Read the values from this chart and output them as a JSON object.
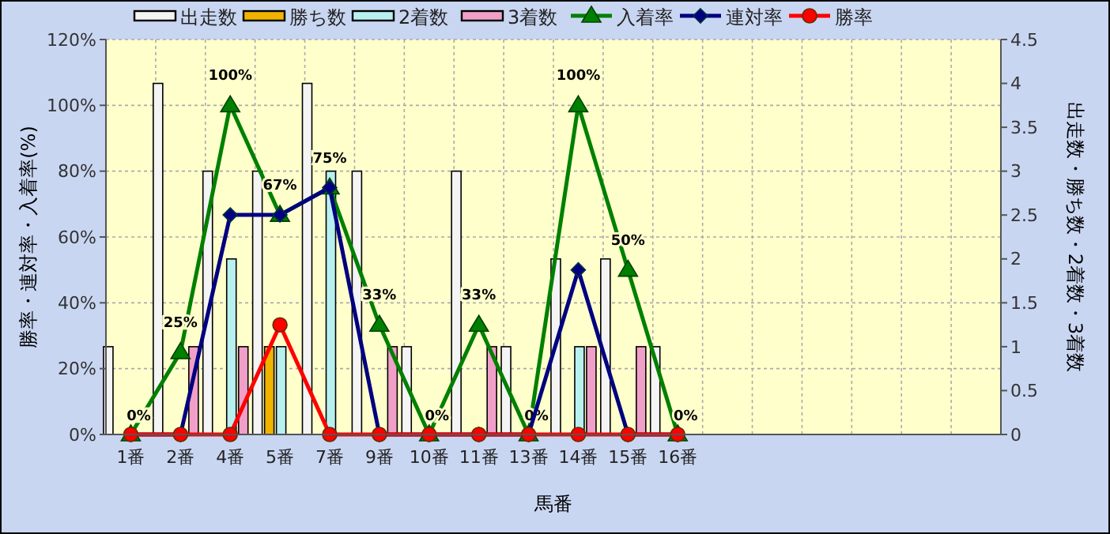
{
  "chart_data": {
    "type": "bar",
    "xlabel": "馬番",
    "ylabel": "勝率・連対率・入着率(%)",
    "y2label": "出走数・勝ち数・2着数・3着数",
    "categories": [
      "1番",
      "2番",
      "4番",
      "5番",
      "7番",
      "9番",
      "10番",
      "11番",
      "13番",
      "14番",
      "15番",
      "16番",
      null,
      null,
      null,
      null,
      null,
      null
    ],
    "series": [
      {
        "name": "出走数",
        "type": "bar",
        "axis": "y2",
        "color": "#f4f4f4",
        "values": [
          1,
          4,
          3,
          3,
          4,
          3,
          1,
          3,
          1,
          2,
          2,
          1,
          null,
          null,
          null,
          null,
          null,
          null
        ]
      },
      {
        "name": "勝ち数",
        "type": "bar",
        "axis": "y2",
        "color": "#f0b400",
        "values": [
          0,
          0,
          0,
          1,
          0,
          0,
          0,
          0,
          0,
          0,
          0,
          0,
          null,
          null,
          null,
          null,
          null,
          null
        ]
      },
      {
        "name": "2着数",
        "type": "bar",
        "axis": "y2",
        "color": "#b8f0f0",
        "values": [
          0,
          0,
          2,
          1,
          3,
          0,
          0,
          0,
          0,
          1,
          0,
          0,
          null,
          null,
          null,
          null,
          null,
          null
        ]
      },
      {
        "name": "3着数",
        "type": "bar",
        "axis": "y2",
        "color": "#f0a0c8",
        "values": [
          0,
          1,
          1,
          0,
          0,
          1,
          0,
          1,
          0,
          1,
          1,
          0,
          null,
          null,
          null,
          null,
          null,
          null
        ]
      },
      {
        "name": "入着率",
        "type": "line",
        "color": "#008000",
        "marker": "triangle",
        "values": [
          0,
          25,
          100,
          66.7,
          75,
          33.3,
          0,
          33.3,
          0,
          100,
          50,
          0,
          null,
          null,
          null,
          null,
          null,
          null
        ],
        "value_labels": [
          "0%",
          "25%",
          "100%",
          "67%",
          "75%",
          "33%",
          "0%",
          "33%",
          "0%",
          "100%",
          "50%",
          "0%",
          null,
          null,
          null,
          null,
          null,
          null
        ]
      },
      {
        "name": "連対率",
        "type": "line",
        "color": "#000080",
        "marker": "diamond",
        "values": [
          0,
          0,
          66.7,
          66.7,
          75,
          0,
          0,
          0,
          0,
          50,
          0,
          0,
          null,
          null,
          null,
          null,
          null,
          null
        ]
      },
      {
        "name": "勝率",
        "type": "line",
        "color": "#ff0000",
        "marker": "circle",
        "values": [
          0,
          0,
          0,
          33.3,
          0,
          0,
          0,
          0,
          0,
          0,
          0,
          0,
          null,
          null,
          null,
          null,
          null,
          null
        ]
      }
    ],
    "ylim": [
      0,
      120
    ],
    "yticks": [
      {
        "value": 0,
        "label": "0%"
      },
      {
        "value": 20,
        "label": "20%"
      },
      {
        "value": 40,
        "label": "40%"
      },
      {
        "value": 60,
        "label": "60%"
      },
      {
        "value": 80,
        "label": "80%"
      },
      {
        "value": 100,
        "label": "100%"
      },
      {
        "value": 120,
        "label": "120%"
      }
    ],
    "y2lim": [
      0,
      4.5
    ],
    "y2ticks": [
      0,
      0.5,
      1,
      1.5,
      2,
      2.5,
      3,
      3.5,
      4,
      4.5
    ],
    "grid": true,
    "legend": "top"
  }
}
